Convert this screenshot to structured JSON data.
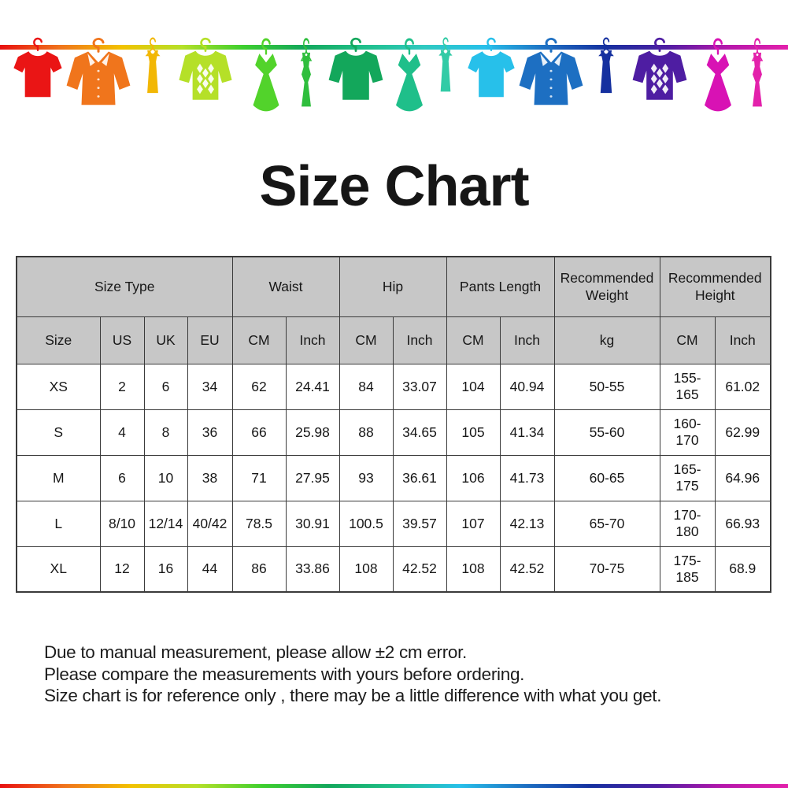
{
  "title": "Size Chart",
  "banner": {
    "line_gradient": [
      "#e81010",
      "#f0751c",
      "#f2c200",
      "#b5e028",
      "#3ecf2e",
      "#13a75b",
      "#1fbf8a",
      "#2fc9c0",
      "#27c0ea",
      "#1d6fc2",
      "#15309f",
      "#4e1da2",
      "#b517ab",
      "#e321ab"
    ],
    "garments": [
      {
        "type": "tshirt",
        "color": "#ea1515",
        "name": "red-tshirt-icon"
      },
      {
        "type": "shirt",
        "color": "#f0751c",
        "name": "orange-shirt-icon"
      },
      {
        "type": "tank",
        "color": "#f2b705",
        "name": "yellow-tank-top-icon"
      },
      {
        "type": "argyle",
        "color": "#b5e028",
        "name": "yellow-green-argyle-sweater-icon"
      },
      {
        "type": "dress",
        "color": "#52d32b",
        "name": "green-dress-icon"
      },
      {
        "type": "tankdress",
        "color": "#2fbe3d",
        "name": "green-tank-dress-icon"
      },
      {
        "type": "sweater",
        "color": "#13a75b",
        "name": "green-sweater-icon"
      },
      {
        "type": "dress",
        "color": "#1fbf8a",
        "name": "teal-dress-icon"
      },
      {
        "type": "tank",
        "color": "#32cba6",
        "name": "teal-tank-top-icon"
      },
      {
        "type": "tshirt",
        "color": "#27c0ea",
        "name": "cyan-tshirt-icon"
      },
      {
        "type": "shirt",
        "color": "#1d6fc2",
        "name": "blue-shirt-icon"
      },
      {
        "type": "tank",
        "color": "#15309f",
        "name": "navy-tank-top-icon"
      },
      {
        "type": "argyle",
        "color": "#4e1da2",
        "name": "purple-argyle-sweater-icon"
      },
      {
        "type": "dress",
        "color": "#d812b4",
        "name": "magenta-dress-icon"
      },
      {
        "type": "tankdress",
        "color": "#e321ab",
        "name": "pink-tank-dress-icon"
      }
    ]
  },
  "table": {
    "header_bg": "#c7c7c7",
    "border_color": "#3a3a3a",
    "group_headers": [
      {
        "label": "Size Type",
        "colspan": 4
      },
      {
        "label": "Waist",
        "colspan": 2
      },
      {
        "label": "Hip",
        "colspan": 2
      },
      {
        "label": "Pants Length",
        "colspan": 2
      },
      {
        "label": "Recommended Weight",
        "colspan": 1
      },
      {
        "label": "Recommended Height",
        "colspan": 2
      }
    ],
    "sub_headers": [
      "Size",
      "US",
      "UK",
      "EU",
      "CM",
      "Inch",
      "CM",
      "Inch",
      "CM",
      "Inch",
      "kg",
      "CM",
      "Inch"
    ],
    "rows": [
      [
        "XS",
        "2",
        "6",
        "34",
        "62",
        "24.41",
        "84",
        "33.07",
        "104",
        "40.94",
        "50-55",
        "155-165",
        "61.02"
      ],
      [
        "S",
        "4",
        "8",
        "36",
        "66",
        "25.98",
        "88",
        "34.65",
        "105",
        "41.34",
        "55-60",
        "160-170",
        "62.99"
      ],
      [
        "M",
        "6",
        "10",
        "38",
        "71",
        "27.95",
        "93",
        "36.61",
        "106",
        "41.73",
        "60-65",
        "165-175",
        "64.96"
      ],
      [
        "L",
        "8/10",
        "12/14",
        "40/42",
        "78.5",
        "30.91",
        "100.5",
        "39.57",
        "107",
        "42.13",
        "65-70",
        "170-180",
        "66.93"
      ],
      [
        "XL",
        "12",
        "16",
        "44",
        "86",
        "33.86",
        "108",
        "42.52",
        "108",
        "42.52",
        "70-75",
        "175-185",
        "68.9"
      ]
    ]
  },
  "notes": [
    "Due to manual measurement, please allow ±2 cm error.",
    "Please compare the measurements with yours before ordering.",
    "Size chart is for reference only , there may be a little difference with what you get."
  ]
}
